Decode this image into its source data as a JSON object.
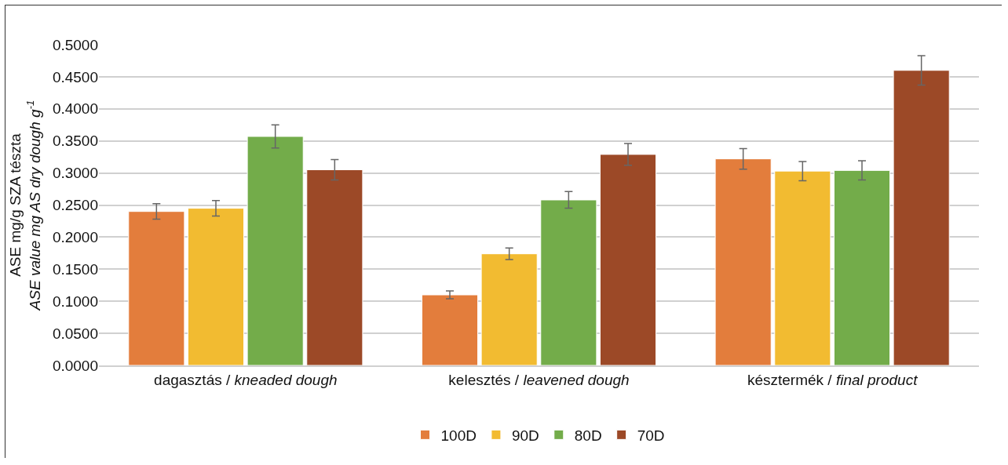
{
  "chart_data": {
    "type": "bar",
    "categories": [
      "dagasztás / kneaded dough",
      "kelesztés / leavened dough",
      "késztermék / final product"
    ],
    "ylabel": "ASE mg/g SZA tészta\nASE value mg AS dry dough g$^{-1}$",
    "series": [
      {
        "name": "100D",
        "color": "#e37d3c",
        "values": [
          0.24,
          0.11,
          0.322
        ],
        "errors": [
          0.012,
          0.006,
          0.016
        ]
      },
      {
        "name": "90D",
        "color": "#f2bb31",
        "values": [
          0.245,
          0.174,
          0.303
        ],
        "errors": [
          0.012,
          0.009,
          0.015
        ]
      },
      {
        "name": "80D",
        "color": "#73ac4a",
        "values": [
          0.357,
          0.258,
          0.304
        ],
        "errors": [
          0.018,
          0.013,
          0.015
        ]
      },
      {
        "name": "70D",
        "color": "#9c4927",
        "values": [
          0.305,
          0.329,
          0.46
        ],
        "errors": [
          0.016,
          0.017,
          0.023
        ]
      }
    ],
    "ylim": [
      0,
      0.5
    ],
    "yticks": [
      {
        "value": 0,
        "label": "0.0000"
      },
      {
        "value": 0.05,
        "label": "0.0500"
      },
      {
        "value": 0.1,
        "label": "0.1000"
      },
      {
        "value": 0.15,
        "label": "0.1500"
      },
      {
        "value": 0.2,
        "label": "0.2000"
      },
      {
        "value": 0.25,
        "label": "0.2500"
      },
      {
        "value": 0.3,
        "label": "0.3000"
      },
      {
        "value": 0.35,
        "label": "0.3500"
      },
      {
        "value": 0.4,
        "label": "0.4000"
      },
      {
        "value": 0.45,
        "label": "0.4500"
      },
      {
        "value": 0.5,
        "label": "0.5000"
      }
    ],
    "grid": "y",
    "legend": "bottom"
  }
}
